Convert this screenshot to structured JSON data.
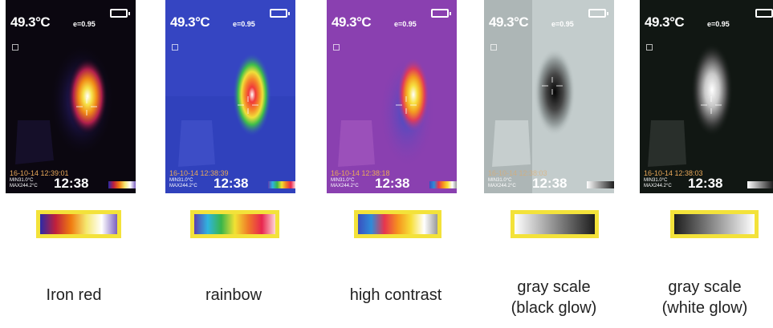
{
  "modes": [
    {
      "temperature": "49.3°C",
      "emissivity": "e=0.95",
      "date": "16-10-14 12:39:01",
      "min": "MIN31.0°C",
      "max": "MAX244.2°C",
      "time": "12:38",
      "label_lines": [
        "Iron red"
      ],
      "scale_colors": [
        "#2a2aa8",
        "#c0203c",
        "#f07b10",
        "#f5e870",
        "#ffffff",
        "#7a5fbf"
      ]
    },
    {
      "temperature": "49.3°C",
      "emissivity": "e=0.95",
      "date": "16-10-14 12:38:39",
      "min": "MIN31.0°C",
      "max": "MAX244.2°C",
      "time": "12:38",
      "label_lines": [
        "rainbow"
      ],
      "scale_colors": [
        "#5a3fb0",
        "#2fb4e0",
        "#39b54a",
        "#f2e233",
        "#f07a28",
        "#e8264f",
        "#ffd6d6"
      ]
    },
    {
      "temperature": "49.3°C",
      "emissivity": "e=0.95",
      "date": "16-10-14 12:38:18",
      "min": "MIN31.0°C",
      "max": "MAX244.2°C",
      "time": "12:38",
      "label_lines": [
        "high contrast"
      ],
      "scale_colors": [
        "#3a4fbf",
        "#2f8bd8",
        "#e8354e",
        "#f6921e",
        "#f7df38",
        "#ffffff",
        "#999999"
      ]
    },
    {
      "temperature": "49.3°C",
      "emissivity": "e=0.95",
      "date": "16-10-14 12:38:03",
      "min": "MIN31.0°C",
      "max": "MAX244.2°C",
      "time": "12:38",
      "label_lines": [
        "gray scale",
        "(black glow)"
      ],
      "scale_colors": [
        "#ffffff",
        "#1e1e1e"
      ]
    },
    {
      "temperature": "49.3°C",
      "emissivity": "e=0.95",
      "date": "16-10-14 12:38:03",
      "min": "MIN31.0°C",
      "max": "MAX244.2°C",
      "time": "12:38",
      "label_lines": [
        "gray scale",
        "(white glow)"
      ],
      "scale_colors": [
        "#1e1e1e",
        "#ffffff"
      ]
    }
  ],
  "colors": {
    "scale_frame": "#f3e23a",
    "hud_text": "#ffffff",
    "date_text": "#e8a85a"
  }
}
